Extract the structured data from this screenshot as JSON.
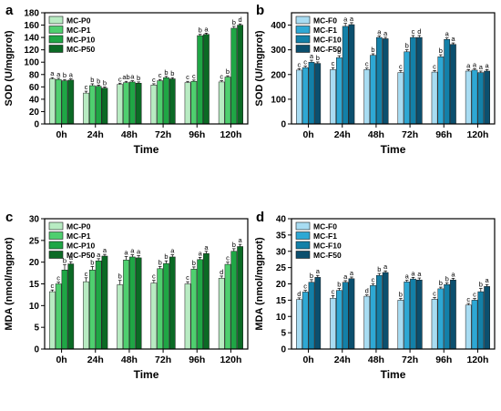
{
  "palette": {
    "mc_p": [
      "#b8ebc2",
      "#4fcf6f",
      "#1fa645",
      "#0b6a25"
    ],
    "mc_f": [
      "#a8dcf2",
      "#2ea8d4",
      "#1380a8",
      "#0b4f6e"
    ],
    "axis": "#000000"
  },
  "chart_data": [
    {
      "panel": "a",
      "type": "bar",
      "categories": [
        "0h",
        "24h",
        "48h",
        "72h",
        "96h",
        "120h"
      ],
      "xlabel": "Time",
      "ylabel": "SOD (U/mgprot)",
      "ylim": [
        0,
        180
      ],
      "yticks": [
        0,
        20,
        40,
        60,
        80,
        100,
        120,
        140,
        160,
        180
      ],
      "legend_position": "top-left",
      "series": [
        {
          "name": "MC-P0",
          "values": [
            73,
            50,
            64,
            63,
            67,
            68
          ],
          "errors": [
            2,
            3,
            2,
            2,
            2,
            2
          ],
          "letters": [
            "a",
            "c",
            "c",
            "c",
            "c",
            "c"
          ]
        },
        {
          "name": "MC-P1",
          "values": [
            72,
            62,
            67,
            70,
            69,
            76
          ],
          "errors": [
            2,
            3,
            2,
            2,
            2,
            2
          ],
          "letters": [
            "a",
            "b",
            "ab",
            "c",
            "c",
            "b"
          ]
        },
        {
          "name": "MC-P10",
          "values": [
            70,
            61,
            68,
            75,
            143,
            155
          ],
          "errors": [
            2,
            2,
            2,
            2,
            2,
            3
          ],
          "letters": [
            "b",
            "b",
            "a",
            "b",
            "b",
            "b"
          ]
        },
        {
          "name": "MC-P50",
          "values": [
            71,
            58,
            66,
            73,
            145,
            160
          ],
          "errors": [
            2,
            2,
            2,
            2,
            2,
            2
          ],
          "letters": [
            "a",
            "b",
            "b",
            "b",
            "a",
            "d"
          ]
        }
      ]
    },
    {
      "panel": "b",
      "type": "bar",
      "categories": [
        "0h",
        "24h",
        "48h",
        "72h",
        "96h",
        "120h"
      ],
      "xlabel": "Time",
      "ylabel": "SOD (U/mgprot)",
      "ylim": [
        0,
        450
      ],
      "yticks": [
        0,
        100,
        200,
        300,
        400
      ],
      "legend_position": "top-left",
      "series": [
        {
          "name": "MC-F0",
          "values": [
            218,
            220,
            220,
            208,
            210,
            214
          ],
          "errors": [
            6,
            8,
            6,
            8,
            6,
            6
          ],
          "letters": [
            "c",
            "c",
            "c",
            "c",
            "c",
            "a"
          ]
        },
        {
          "name": "MC-F1",
          "values": [
            228,
            268,
            278,
            292,
            272,
            218
          ],
          "errors": [
            6,
            8,
            6,
            8,
            8,
            6
          ],
          "letters": [
            "c",
            "b",
            "b",
            "b",
            "b",
            "a"
          ]
        },
        {
          "name": "MC-F10",
          "values": [
            250,
            395,
            350,
            350,
            342,
            208
          ],
          "errors": [
            8,
            12,
            6,
            8,
            6,
            6
          ],
          "letters": [
            "a",
            "a",
            "a",
            "c",
            "a",
            "a"
          ]
        },
        {
          "name": "MC-F50",
          "values": [
            245,
            402,
            345,
            350,
            322,
            214
          ],
          "errors": [
            6,
            8,
            6,
            8,
            6,
            6
          ],
          "letters": [
            "b",
            "a",
            "a",
            "d",
            "a",
            "a"
          ]
        }
      ]
    },
    {
      "panel": "c",
      "type": "bar",
      "categories": [
        "0h",
        "24h",
        "48h",
        "72h",
        "96h",
        "120h"
      ],
      "xlabel": "Time",
      "ylabel": "MDA (nmol/mgprot)",
      "ylim": [
        0,
        30
      ],
      "yticks": [
        0,
        5,
        10,
        15,
        20,
        25,
        30
      ],
      "legend_position": "top-left",
      "series": [
        {
          "name": "MC-P0",
          "values": [
            13.2,
            15.5,
            14.8,
            15.2,
            15.0,
            16.3
          ],
          "errors": [
            0.4,
            0.9,
            1.0,
            0.6,
            0.5,
            0.5
          ],
          "letters": [
            "c",
            "c",
            "b",
            "c",
            "c",
            "d"
          ]
        },
        {
          "name": "MC-P1",
          "values": [
            15.0,
            18.2,
            20.5,
            18.5,
            18.4,
            19.5
          ],
          "errors": [
            0.4,
            0.8,
            0.8,
            0.5,
            0.5,
            0.5
          ],
          "letters": [
            "c",
            "b",
            "a",
            "b",
            "b",
            "c"
          ]
        },
        {
          "name": "MC-P10",
          "values": [
            18.2,
            20.3,
            21.2,
            19.7,
            20.6,
            22.5
          ],
          "errors": [
            1.2,
            0.5,
            0.5,
            0.6,
            0.5,
            0.6
          ],
          "letters": [
            "b",
            "a",
            "a",
            "b",
            "a",
            "b"
          ]
        },
        {
          "name": "MC-P50",
          "values": [
            19.6,
            21.4,
            21.0,
            21.2,
            22.0,
            23.6
          ],
          "errors": [
            0.5,
            0.4,
            0.5,
            0.5,
            0.5,
            0.5
          ],
          "letters": [
            "a",
            "a",
            "a",
            "a",
            "a",
            "a"
          ]
        }
      ]
    },
    {
      "panel": "d",
      "type": "bar",
      "categories": [
        "0h",
        "24h",
        "48h",
        "72h",
        "96h",
        "120h"
      ],
      "xlabel": "Time",
      "ylabel": "MDA (nmol/mgprot)",
      "ylim": [
        0,
        40
      ],
      "yticks": [
        0,
        5,
        10,
        15,
        20,
        25,
        30,
        35,
        40
      ],
      "legend_position": "top-left",
      "series": [
        {
          "name": "MC-F0",
          "values": [
            15.2,
            15.6,
            16.2,
            15.0,
            15.3,
            13.5
          ],
          "errors": [
            0.5,
            0.8,
            0.4,
            0.5,
            0.5,
            0.5
          ],
          "letters": [
            "d",
            "c",
            "d",
            "b",
            "c",
            "c"
          ]
        },
        {
          "name": "MC-F1",
          "values": [
            17.5,
            18.0,
            19.5,
            20.6,
            18.5,
            15.0
          ],
          "errors": [
            0.5,
            0.6,
            0.5,
            0.5,
            0.5,
            0.5
          ],
          "letters": [
            "c",
            "b",
            "c",
            "a",
            "b",
            "c"
          ]
        },
        {
          "name": "MC-F10",
          "values": [
            20.5,
            20.5,
            22.6,
            21.5,
            19.8,
            17.6
          ],
          "errors": [
            0.8,
            0.5,
            0.6,
            0.5,
            0.5,
            1.0
          ],
          "letters": [
            "b",
            "a",
            "b",
            "a",
            "b",
            "b"
          ]
        },
        {
          "name": "MC-F50",
          "values": [
            22.0,
            21.6,
            23.5,
            21.2,
            21.2,
            19.2
          ],
          "errors": [
            0.6,
            0.5,
            0.5,
            0.6,
            0.5,
            0.6
          ],
          "letters": [
            "a",
            "a",
            "a",
            "a",
            "a",
            "a"
          ]
        }
      ]
    }
  ]
}
